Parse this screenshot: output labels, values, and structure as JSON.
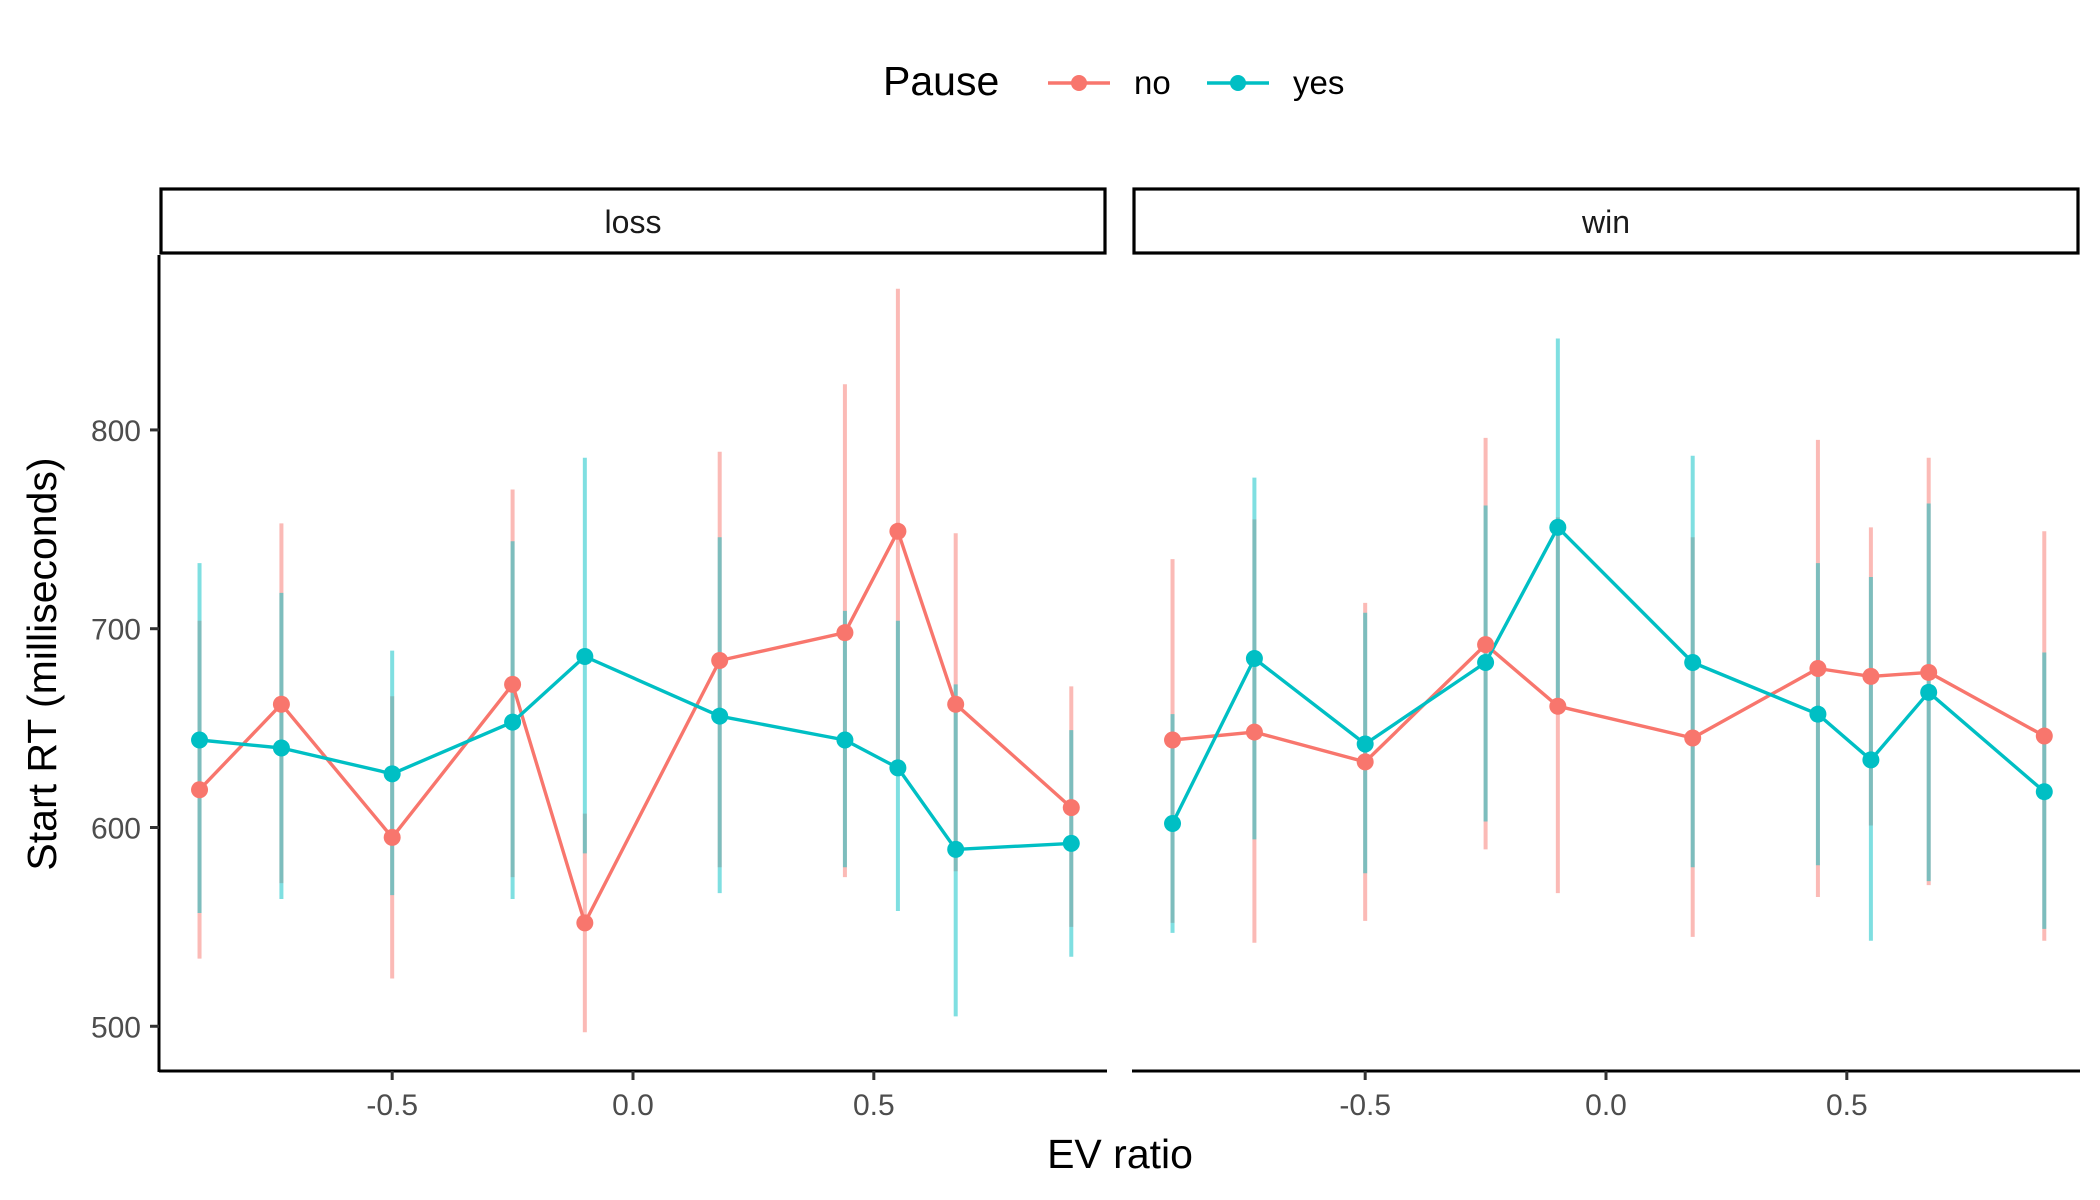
{
  "chart_data": {
    "type": "line",
    "legend": {
      "title": "Pause",
      "position": "top",
      "entries": [
        {
          "label": "no",
          "color": "#F8766D"
        },
        {
          "label": "yes",
          "color": "#00BFC4"
        }
      ]
    },
    "xlabel": "EV ratio",
    "ylabel": "Start RT (milliseconds)",
    "xlim": [
      -0.98,
      0.98
    ],
    "ylim": [
      478,
      888
    ],
    "x_ticks": [
      {
        "value": -0.5,
        "label": "-0.5"
      },
      {
        "value": 0.0,
        "label": "0.0"
      },
      {
        "value": 0.5,
        "label": "0.5"
      }
    ],
    "y_ticks": [
      {
        "value": 500,
        "label": "500"
      },
      {
        "value": 600,
        "label": "600"
      },
      {
        "value": 700,
        "label": "700"
      },
      {
        "value": 800,
        "label": "800"
      }
    ],
    "grid": false,
    "panels": [
      {
        "strip": "loss",
        "series": [
          {
            "name": "no",
            "color": "#F8766D",
            "points": [
              {
                "x": -0.9,
                "y": 619,
                "lo": 534,
                "hi": 704
              },
              {
                "x": -0.73,
                "y": 662,
                "lo": 572,
                "hi": 753
              },
              {
                "x": -0.5,
                "y": 595,
                "lo": 524,
                "hi": 666
              },
              {
                "x": -0.25,
                "y": 672,
                "lo": 575,
                "hi": 770
              },
              {
                "x": -0.1,
                "y": 552,
                "lo": 497,
                "hi": 607
              },
              {
                "x": 0.18,
                "y": 684,
                "lo": 580,
                "hi": 789
              },
              {
                "x": 0.44,
                "y": 698,
                "lo": 575,
                "hi": 823
              },
              {
                "x": 0.55,
                "y": 749,
                "lo": 627,
                "hi": 871
              },
              {
                "x": 0.67,
                "y": 662,
                "lo": 578,
                "hi": 748
              },
              {
                "x": 0.91,
                "y": 610,
                "lo": 550,
                "hi": 671
              }
            ]
          },
          {
            "name": "yes",
            "color": "#00BFC4",
            "points": [
              {
                "x": -0.9,
                "y": 644,
                "lo": 557,
                "hi": 733
              },
              {
                "x": -0.73,
                "y": 640,
                "lo": 564,
                "hi": 718
              },
              {
                "x": -0.5,
                "y": 627,
                "lo": 566,
                "hi": 689
              },
              {
                "x": -0.25,
                "y": 653,
                "lo": 564,
                "hi": 744
              },
              {
                "x": -0.1,
                "y": 686,
                "lo": 587,
                "hi": 786
              },
              {
                "x": 0.18,
                "y": 656,
                "lo": 567,
                "hi": 746
              },
              {
                "x": 0.44,
                "y": 644,
                "lo": 580,
                "hi": 709
              },
              {
                "x": 0.55,
                "y": 630,
                "lo": 558,
                "hi": 704
              },
              {
                "x": 0.67,
                "y": 589,
                "lo": 505,
                "hi": 672
              },
              {
                "x": 0.91,
                "y": 592,
                "lo": 535,
                "hi": 649
              }
            ]
          }
        ]
      },
      {
        "strip": "win",
        "series": [
          {
            "name": "no",
            "color": "#F8766D",
            "points": [
              {
                "x": -0.9,
                "y": 644,
                "lo": 552,
                "hi": 735
              },
              {
                "x": -0.73,
                "y": 648,
                "lo": 542,
                "hi": 755
              },
              {
                "x": -0.5,
                "y": 633,
                "lo": 553,
                "hi": 713
              },
              {
                "x": -0.25,
                "y": 692,
                "lo": 589,
                "hi": 796
              },
              {
                "x": -0.1,
                "y": 661,
                "lo": 567,
                "hi": 756
              },
              {
                "x": 0.18,
                "y": 645,
                "lo": 545,
                "hi": 746
              },
              {
                "x": 0.44,
                "y": 680,
                "lo": 565,
                "hi": 795
              },
              {
                "x": 0.55,
                "y": 676,
                "lo": 601,
                "hi": 751
              },
              {
                "x": 0.67,
                "y": 678,
                "lo": 571,
                "hi": 786
              },
              {
                "x": 0.91,
                "y": 646,
                "lo": 543,
                "hi": 749
              }
            ]
          },
          {
            "name": "yes",
            "color": "#00BFC4",
            "points": [
              {
                "x": -0.9,
                "y": 602,
                "lo": 547,
                "hi": 657
              },
              {
                "x": -0.73,
                "y": 685,
                "lo": 594,
                "hi": 776
              },
              {
                "x": -0.5,
                "y": 642,
                "lo": 577,
                "hi": 708
              },
              {
                "x": -0.25,
                "y": 683,
                "lo": 603,
                "hi": 762
              },
              {
                "x": -0.1,
                "y": 751,
                "lo": 657,
                "hi": 846
              },
              {
                "x": 0.18,
                "y": 683,
                "lo": 580,
                "hi": 787
              },
              {
                "x": 0.44,
                "y": 657,
                "lo": 581,
                "hi": 733
              },
              {
                "x": 0.55,
                "y": 634,
                "lo": 543,
                "hi": 726
              },
              {
                "x": 0.67,
                "y": 668,
                "lo": 573,
                "hi": 763
              },
              {
                "x": 0.91,
                "y": 618,
                "lo": 549,
                "hi": 688
              }
            ]
          }
        ]
      }
    ]
  }
}
